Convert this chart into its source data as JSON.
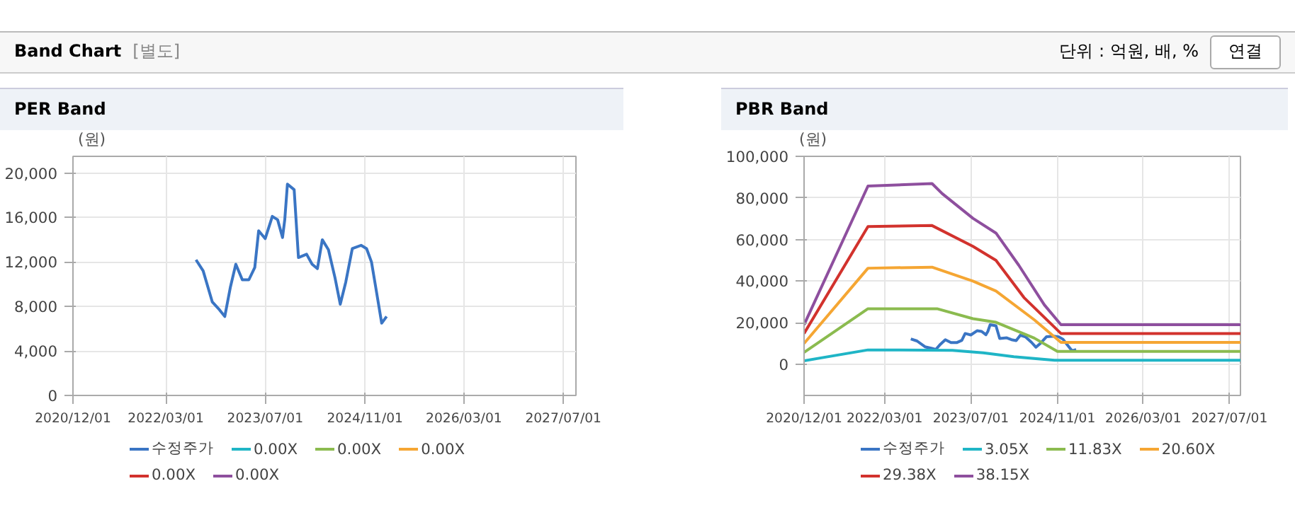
{
  "chart_data": [
    {
      "type": "line",
      "title": "PER Band",
      "ylabel": "(원)",
      "annotations": [
        "Band Chart",
        "[별도]",
        "단위 : 억원, 배, %",
        "연결"
      ],
      "xlim": [
        "2020-12-01",
        "2027-09-01"
      ],
      "ylim": [
        0,
        21500
      ],
      "xticks": [
        {
          "value": "2020-12-01",
          "label": "2020/12/01"
        },
        {
          "value": "2022-03-01",
          "label": "2022/03/01"
        },
        {
          "value": "2023-07-01",
          "label": "2023/07/01"
        },
        {
          "value": "2024-11-01",
          "label": "2024/11/01"
        },
        {
          "value": "2026-03-01",
          "label": "2026/03/01"
        },
        {
          "value": "2027-07-01",
          "label": "2027/07/01"
        }
      ],
      "yticks": [
        {
          "value": 0,
          "label": "0"
        },
        {
          "value": 4000,
          "label": "4,000"
        },
        {
          "value": 8000,
          "label": "8,000"
        },
        {
          "value": 12000,
          "label": "12,000"
        },
        {
          "value": 16000,
          "label": "16,000"
        },
        {
          "value": 20000,
          "label": "20,000"
        }
      ],
      "grid": true,
      "legend": "bottom",
      "marker": "none",
      "line_style": "solid",
      "series": [
        {
          "name": "수정주가",
          "color": "#3a75c4",
          "x": [
            "2022-07-27",
            "2022-08-31",
            "2022-10-15",
            "2022-11-19",
            "2022-12-15",
            "2023-01-11",
            "2023-02-07",
            "2023-03-11",
            "2023-04-12",
            "2023-05-11",
            "2023-05-30",
            "2023-07-01",
            "2023-08-05",
            "2023-08-31",
            "2023-09-24",
            "2023-10-05",
            "2023-10-18",
            "2023-11-20",
            "2023-12-11",
            "2024-01-20",
            "2024-02-16",
            "2024-03-13",
            "2024-04-06",
            "2024-05-06",
            "2024-06-07",
            "2024-07-03",
            "2024-07-30",
            "2024-08-31",
            "2024-10-13",
            "2024-11-09",
            "2024-12-03",
            "2024-12-24",
            "2025-01-22",
            "2025-02-15"
          ],
          "values": [
            12200,
            11200,
            8400,
            7700,
            7100,
            9700,
            11800,
            10400,
            10400,
            11500,
            14800,
            14100,
            16100,
            15800,
            14200,
            15800,
            19000,
            18500,
            12400,
            12700,
            11800,
            11400,
            14000,
            13100,
            10600,
            8200,
            10200,
            13200,
            13500,
            13200,
            12000,
            9700,
            6500,
            7100
          ]
        },
        {
          "name": "0.00X",
          "color": "#1fb5c6"
        },
        {
          "name": "0.00X",
          "color": "#8bbb4f"
        },
        {
          "name": "0.00X",
          "color": "#f5a633"
        },
        {
          "name": "0.00X",
          "color": "#d2322d"
        },
        {
          "name": "0.00X",
          "color": "#8e4f9e"
        }
      ]
    },
    {
      "type": "line",
      "title": "PBR Band",
      "ylabel": "(원)",
      "xlim": [
        "2020-12-01",
        "2027-09-01"
      ],
      "ylim": [
        -15000,
        100000
      ],
      "xticks": [
        {
          "value": "2020-12-01",
          "label": "2020/12/01"
        },
        {
          "value": "2022-03-01",
          "label": "2022/03/01"
        },
        {
          "value": "2023-07-01",
          "label": "2023/07/01"
        },
        {
          "value": "2024-11-01",
          "label": "2024/11/01"
        },
        {
          "value": "2026-03-01",
          "label": "2026/03/01"
        },
        {
          "value": "2027-07-01",
          "label": "2027/07/01"
        }
      ],
      "yticks": [
        {
          "value": 0,
          "label": "0"
        },
        {
          "value": 20000,
          "label": "20,000"
        },
        {
          "value": 40000,
          "label": "40,000"
        },
        {
          "value": 60000,
          "label": "60,000"
        },
        {
          "value": 80000,
          "label": "80,000"
        },
        {
          "value": 100000,
          "label": "100,000"
        }
      ],
      "grid": true,
      "legend": "bottom",
      "marker": "none",
      "line_style": "solid",
      "series": [
        {
          "name": "수정주가",
          "color": "#3a75c4",
          "x": [
            "2022-07-27",
            "2022-08-31",
            "2022-10-15",
            "2022-11-19",
            "2022-12-15",
            "2023-01-11",
            "2023-02-07",
            "2023-03-11",
            "2023-04-12",
            "2023-05-11",
            "2023-05-30",
            "2023-07-01",
            "2023-08-05",
            "2023-08-31",
            "2023-09-24",
            "2023-10-05",
            "2023-10-18",
            "2023-11-20",
            "2023-12-11",
            "2024-01-20",
            "2024-02-16",
            "2024-03-13",
            "2024-04-06",
            "2024-05-06",
            "2024-06-07",
            "2024-07-03",
            "2024-07-30",
            "2024-08-31",
            "2024-10-13",
            "2024-11-09",
            "2024-12-03",
            "2024-12-24",
            "2025-01-22",
            "2025-02-15"
          ],
          "values": [
            12200,
            11200,
            8400,
            7700,
            7100,
            9700,
            11800,
            10400,
            10400,
            11500,
            14800,
            14100,
            16100,
            15800,
            14200,
            15800,
            19000,
            18500,
            12400,
            12700,
            11800,
            11400,
            14000,
            13100,
            10600,
            8200,
            10200,
            13200,
            13500,
            13200,
            12000,
            9700,
            6500,
            7100
          ]
        },
        {
          "name": "3.05X",
          "color": "#1fb5c6",
          "x": [
            "2020-12-01",
            "2021-11-27",
            "2023-03-19",
            "2023-09-09",
            "2024-02-29",
            "2024-10-16",
            "2027-09-01"
          ],
          "values": [
            1700,
            6900,
            6700,
            5500,
            3600,
            1900,
            1900
          ]
        },
        {
          "name": "11.83X",
          "color": "#8bbb4f",
          "x": [
            "2020-12-01",
            "2021-11-27",
            "2022-12-22",
            "2023-07-13",
            "2023-11-20",
            "2024-06-23",
            "2024-11-01",
            "2027-09-01"
          ],
          "values": [
            5700,
            26700,
            26700,
            21900,
            20200,
            12600,
            6200,
            6200
          ]
        },
        {
          "name": "20.60X",
          "color": "#f5a633",
          "x": [
            "2020-12-01",
            "2021-11-27",
            "2022-11-24",
            "2023-07-13",
            "2023-11-20",
            "2024-06-23",
            "2024-11-21",
            "2027-09-01"
          ],
          "values": [
            10000,
            46200,
            46700,
            40000,
            35200,
            21400,
            10500,
            10500
          ]
        },
        {
          "name": "29.38X",
          "color": "#d2322d",
          "x": [
            "2020-12-01",
            "2021-11-27",
            "2022-11-24",
            "2023-07-13",
            "2023-11-20",
            "2024-04-26",
            "2024-11-21",
            "2027-09-01"
          ],
          "values": [
            14800,
            66200,
            66700,
            56700,
            50000,
            32100,
            14800,
            14800
          ]
        },
        {
          "name": "38.15X",
          "color": "#8e4f9e",
          "x": [
            "2020-12-01",
            "2021-11-27",
            "2022-11-24",
            "2023-01-20",
            "2023-07-13",
            "2023-11-20",
            "2024-03-28",
            "2024-08-19",
            "2024-11-21",
            "2027-09-01"
          ],
          "values": [
            19000,
            85700,
            86900,
            82100,
            70200,
            63100,
            47600,
            28600,
            19000,
            19000
          ]
        }
      ]
    }
  ]
}
